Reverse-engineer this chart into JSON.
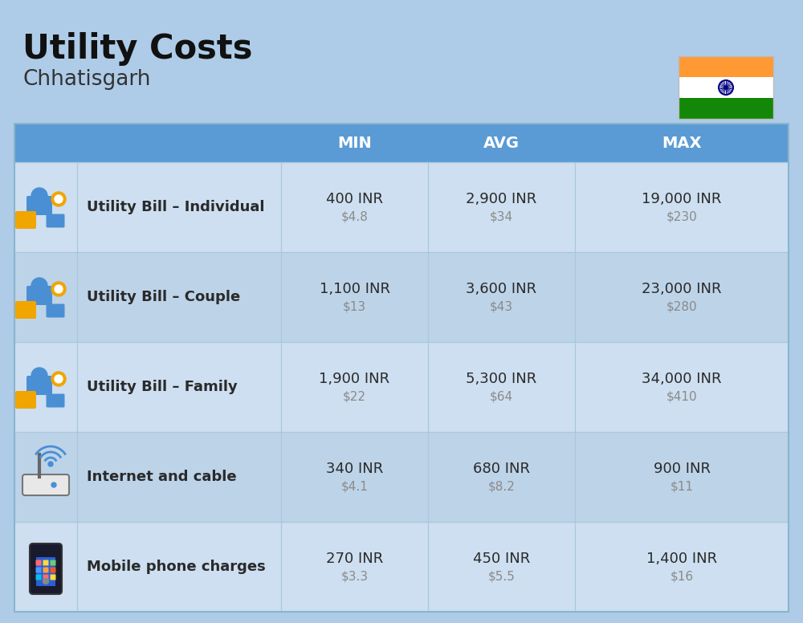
{
  "title": "Utility Costs",
  "subtitle": "Chhatisgarh",
  "background_color": "#aecce8",
  "header_color": "#5b9bd5",
  "row_colors": [
    "#cddff0",
    "#bdd3e8"
  ],
  "header_text_color": "#ffffff",
  "cell_text_color": "#2a2a2a",
  "usd_text_color": "#8a8a8a",
  "col_headers": [
    "MIN",
    "AVG",
    "MAX"
  ],
  "rows": [
    {
      "label": "Utility Bill – Individual",
      "icon": "utility",
      "min_inr": "400 INR",
      "min_usd": "$4.8",
      "avg_inr": "2,900 INR",
      "avg_usd": "$34",
      "max_inr": "19,000 INR",
      "max_usd": "$230"
    },
    {
      "label": "Utility Bill – Couple",
      "icon": "utility",
      "min_inr": "1,100 INR",
      "min_usd": "$13",
      "avg_inr": "3,600 INR",
      "avg_usd": "$43",
      "max_inr": "23,000 INR",
      "max_usd": "$280"
    },
    {
      "label": "Utility Bill – Family",
      "icon": "utility",
      "min_inr": "1,900 INR",
      "min_usd": "$22",
      "avg_inr": "5,300 INR",
      "avg_usd": "$64",
      "max_inr": "34,000 INR",
      "max_usd": "$410"
    },
    {
      "label": "Internet and cable",
      "icon": "internet",
      "min_inr": "340 INR",
      "min_usd": "$4.1",
      "avg_inr": "680 INR",
      "avg_usd": "$8.2",
      "max_inr": "900 INR",
      "max_usd": "$11"
    },
    {
      "label": "Mobile phone charges",
      "icon": "mobile",
      "min_inr": "270 INR",
      "min_usd": "$3.3",
      "avg_inr": "450 INR",
      "avg_usd": "$5.5",
      "max_inr": "1,400 INR",
      "max_usd": "$16"
    }
  ]
}
